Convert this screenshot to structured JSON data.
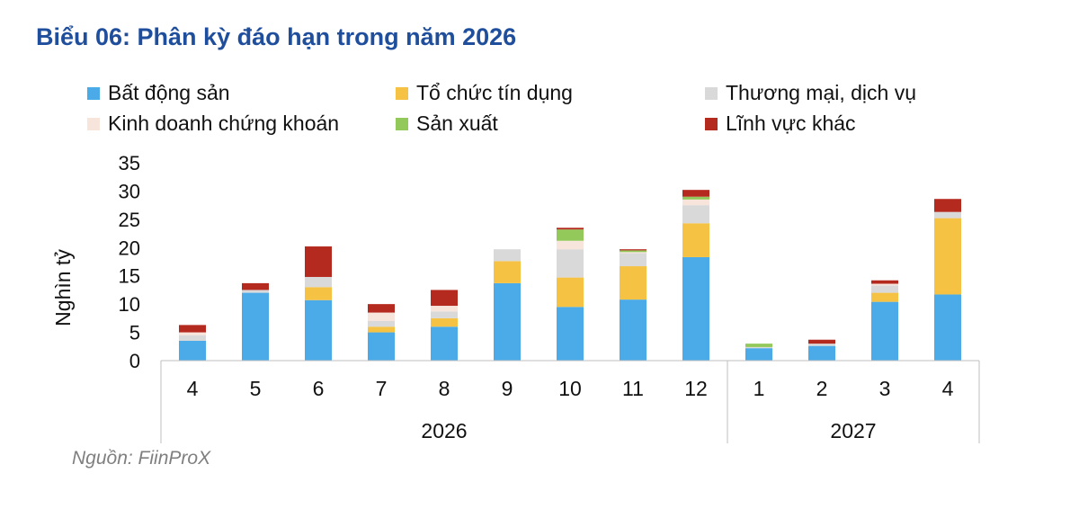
{
  "title": "Biểu 06: Phân kỳ đáo hạn trong năm 2026",
  "source": "Nguồn: FiinProX",
  "legend": [
    {
      "label": "Bất động sản",
      "color": "#4aabe8"
    },
    {
      "label": "Tổ chức tín dụng",
      "color": "#f5c244"
    },
    {
      "label": "Thương mại, dịch vụ",
      "color": "#d9d9d9"
    },
    {
      "label": "Kinh doanh chứng khoán",
      "color": "#f7e4da"
    },
    {
      "label": "Sản xuất",
      "color": "#92c95a"
    },
    {
      "label": "Lĩnh vực khác",
      "color": "#b52a1f"
    }
  ],
  "chart_data": {
    "type": "bar",
    "stacked": true,
    "ylabel": "Nghìn tỷ",
    "ylim": [
      0,
      35
    ],
    "yticks": [
      0,
      5,
      10,
      15,
      20,
      25,
      30,
      35
    ],
    "categories": [
      "4",
      "5",
      "6",
      "7",
      "8",
      "9",
      "10",
      "11",
      "12",
      "1",
      "2",
      "3",
      "4"
    ],
    "groups": [
      {
        "label": "2026",
        "count": 9
      },
      {
        "label": "2027",
        "count": 4
      }
    ],
    "series": [
      {
        "name": "Bất động sản",
        "color": "#4aabe8",
        "values": [
          3.5,
          12.0,
          10.7,
          5.0,
          6.0,
          13.7,
          9.5,
          10.8,
          18.3,
          2.2,
          2.6,
          10.4,
          11.7
        ]
      },
      {
        "name": "Tổ chức tín dụng",
        "color": "#f5c244",
        "values": [
          0.0,
          0.0,
          2.3,
          1.0,
          1.5,
          3.9,
          5.2,
          5.9,
          6.0,
          0.0,
          0.0,
          1.6,
          13.5
        ]
      },
      {
        "name": "Thương mại, dịch vụ",
        "color": "#d9d9d9",
        "values": [
          1.0,
          0.5,
          1.8,
          1.0,
          1.2,
          2.1,
          5.0,
          2.3,
          3.2,
          0.2,
          0.4,
          1.3,
          1.1
        ]
      },
      {
        "name": "Kinh doanh chứng khoán",
        "color": "#f7e4da",
        "values": [
          0.5,
          0.0,
          0.0,
          1.5,
          1.0,
          0.0,
          1.5,
          0.2,
          1.0,
          0.0,
          0.0,
          0.3,
          0.0
        ]
      },
      {
        "name": "Sản xuất",
        "color": "#92c95a",
        "values": [
          0.0,
          0.0,
          0.0,
          0.0,
          0.0,
          0.0,
          2.0,
          0.3,
          0.5,
          0.6,
          0.0,
          0.0,
          0.0
        ]
      },
      {
        "name": "Lĩnh vực khác",
        "color": "#b52a1f",
        "values": [
          1.3,
          1.2,
          5.4,
          1.5,
          2.8,
          0.0,
          0.3,
          0.2,
          1.2,
          0.0,
          0.7,
          0.6,
          2.3
        ]
      }
    ]
  }
}
